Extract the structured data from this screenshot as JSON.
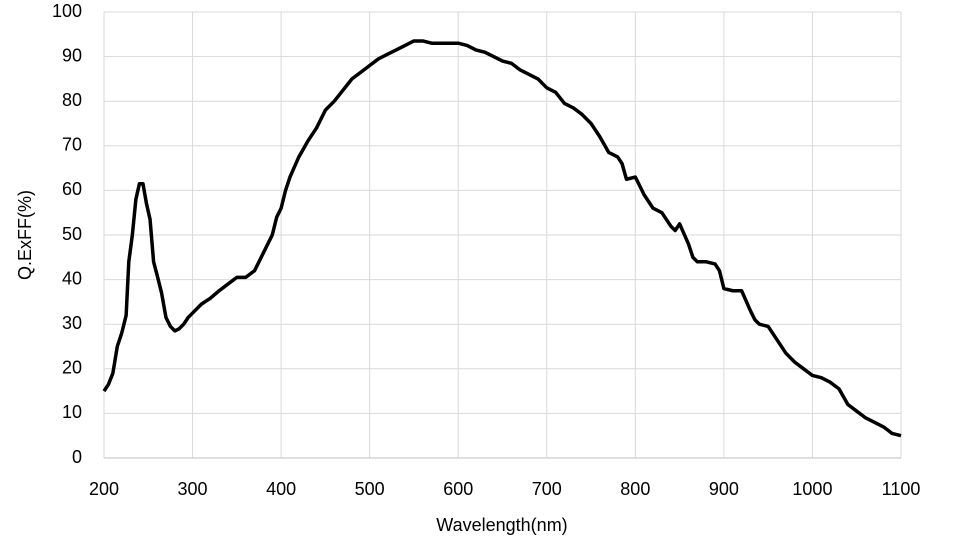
{
  "chart_data": {
    "type": "line",
    "x_label": "Wavelength(nm)",
    "y_label": "Q.ExFF(%)",
    "x": [
      200,
      205,
      210,
      215,
      220,
      225,
      228,
      232,
      236,
      240,
      244,
      248,
      252,
      256,
      260,
      265,
      270,
      275,
      280,
      285,
      290,
      295,
      300,
      310,
      320,
      330,
      340,
      350,
      360,
      370,
      380,
      390,
      395,
      400,
      405,
      410,
      420,
      430,
      440,
      450,
      460,
      470,
      480,
      490,
      500,
      510,
      520,
      530,
      540,
      550,
      560,
      570,
      580,
      590,
      600,
      610,
      620,
      630,
      640,
      650,
      660,
      670,
      680,
      690,
      700,
      710,
      720,
      730,
      740,
      750,
      760,
      770,
      780,
      785,
      790,
      800,
      810,
      820,
      830,
      840,
      845,
      850,
      860,
      865,
      870,
      880,
      890,
      895,
      900,
      910,
      920,
      930,
      935,
      940,
      950,
      960,
      970,
      980,
      990,
      1000,
      1010,
      1020,
      1030,
      1040,
      1050,
      1060,
      1070,
      1080,
      1090,
      1100
    ],
    "values": [
      15,
      16.5,
      19,
      25,
      28,
      32,
      44,
      50,
      58,
      61.5,
      61.5,
      57,
      53.5,
      44,
      41,
      37,
      31.5,
      29.5,
      28.5,
      29,
      30,
      31.5,
      32.5,
      34.5,
      35.8,
      37.5,
      39,
      40.5,
      40.5,
      42,
      46,
      50,
      54,
      56,
      60,
      63,
      67.5,
      71,
      74,
      78,
      80,
      82.5,
      85,
      86.5,
      88,
      89.5,
      90.5,
      91.5,
      92.5,
      93.5,
      93.5,
      93,
      93,
      93,
      93,
      92.5,
      91.5,
      91,
      90,
      89,
      88.5,
      87,
      86,
      85,
      83,
      82,
      79.5,
      78.5,
      77,
      75,
      72,
      68.5,
      67.5,
      66,
      62.5,
      63,
      59,
      56,
      55,
      52,
      51,
      52.5,
      48,
      45,
      44,
      44,
      43.5,
      42,
      38,
      37.5,
      37.5,
      33,
      31,
      30,
      29.5,
      26.5,
      23.5,
      21.5,
      20,
      18.5,
      18,
      17,
      15.5,
      12,
      10.5,
      9,
      8,
      7,
      5.5,
      5
    ],
    "color": "#000000",
    "xlim": [
      200,
      1100
    ],
    "xticks": [
      200,
      300,
      400,
      500,
      600,
      700,
      800,
      900,
      1000,
      1100
    ],
    "ylim": [
      0,
      100
    ],
    "yticks": [
      0,
      10,
      20,
      30,
      40,
      50,
      60,
      70,
      80,
      90,
      100
    ],
    "grid": true
  }
}
